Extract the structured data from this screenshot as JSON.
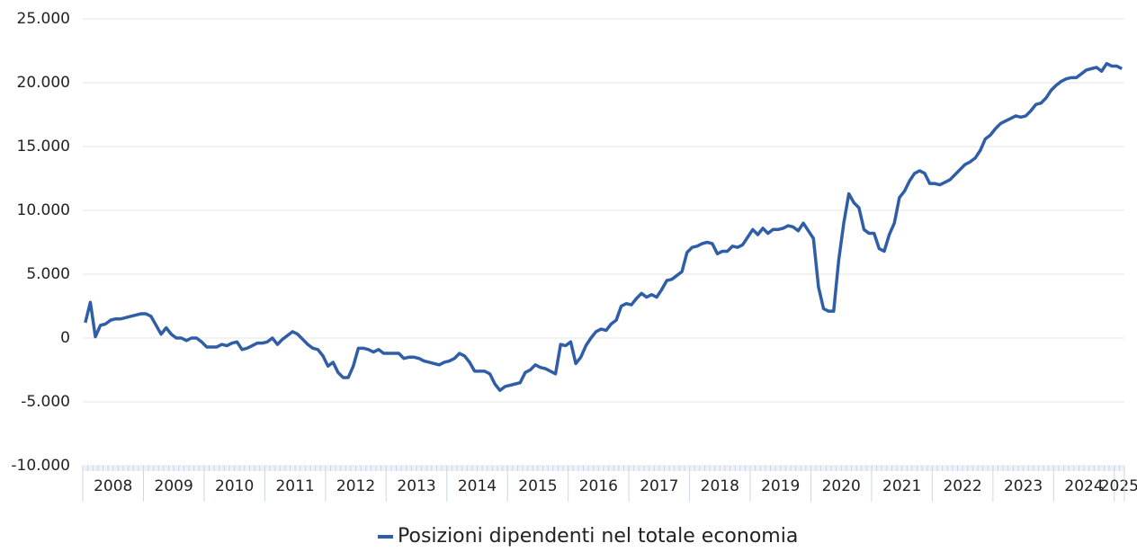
{
  "chart_data": {
    "type": "line",
    "categories": [
      "2008",
      null,
      null,
      null,
      null,
      null,
      null,
      null,
      null,
      null,
      null,
      null,
      "2009",
      null,
      null,
      null,
      null,
      null,
      null,
      null,
      null,
      null,
      null,
      null,
      "2010",
      null,
      null,
      null,
      null,
      null,
      null,
      null,
      null,
      null,
      null,
      null,
      "2011",
      null,
      null,
      null,
      null,
      null,
      null,
      null,
      null,
      null,
      null,
      null,
      "2012",
      null,
      null,
      null,
      null,
      null,
      null,
      null,
      null,
      null,
      null,
      null,
      "2013",
      null,
      null,
      null,
      null,
      null,
      null,
      null,
      null,
      null,
      null,
      null,
      "2014",
      null,
      null,
      null,
      null,
      null,
      null,
      null,
      null,
      null,
      null,
      null,
      "2015",
      null,
      null,
      null,
      null,
      null,
      null,
      null,
      null,
      null,
      null,
      null,
      "2016",
      null,
      null,
      null,
      null,
      null,
      null,
      null,
      null,
      null,
      null,
      null,
      "2017",
      null,
      null,
      null,
      null,
      null,
      null,
      null,
      null,
      null,
      null,
      null,
      "2018",
      null,
      null,
      null,
      null,
      null,
      null,
      null,
      null,
      null,
      null,
      null,
      "2019",
      null,
      null,
      null,
      null,
      null,
      null,
      null,
      null,
      null,
      null,
      null,
      "2020",
      null,
      null,
      null,
      null,
      null,
      null,
      null,
      null,
      null,
      null,
      null,
      "2021",
      null,
      null,
      null,
      null,
      null,
      null,
      null,
      null,
      null,
      null,
      null,
      "2022",
      null,
      null,
      null,
      null,
      null,
      null,
      null,
      null,
      null,
      null,
      null,
      "2023",
      null,
      null,
      null,
      null,
      null,
      null,
      null,
      null,
      null,
      null,
      null,
      "2024",
      null,
      null,
      null,
      null,
      null,
      null,
      null,
      null,
      null,
      null,
      null,
      "2025",
      null
    ],
    "series": [
      {
        "name": "Posizioni dipendenti nel totale economia",
        "color": "#2f5ea6",
        "values": [
          1200,
          2800,
          100,
          1000,
          1100,
          1400,
          1500,
          1500,
          1600,
          1700,
          1800,
          1900,
          1900,
          1700,
          1000,
          300,
          800,
          300,
          0,
          0,
          -200,
          0,
          0,
          -300,
          -700,
          -700,
          -700,
          -500,
          -600,
          -400,
          -300,
          -900,
          -800,
          -600,
          -400,
          -400,
          -300,
          0,
          -500,
          -100,
          200,
          500,
          300,
          -100,
          -500,
          -800,
          -900,
          -1400,
          -2200,
          -1900,
          -2700,
          -3100,
          -3100,
          -2200,
          -800,
          -800,
          -900,
          -1100,
          -900,
          -1200,
          -1200,
          -1200,
          -1200,
          -1600,
          -1500,
          -1500,
          -1600,
          -1800,
          -1900,
          -2000,
          -2100,
          -1900,
          -1800,
          -1600,
          -1200,
          -1400,
          -1900,
          -2600,
          -2600,
          -2600,
          -2800,
          -3600,
          -4100,
          -3800,
          -3700,
          -3600,
          -3500,
          -2700,
          -2500,
          -2100,
          -2300,
          -2400,
          -2600,
          -2800,
          -500,
          -600,
          -300,
          -2000,
          -1500,
          -600,
          0,
          500,
          700,
          600,
          1100,
          1400,
          2500,
          2700,
          2600,
          3100,
          3500,
          3200,
          3400,
          3200,
          3800,
          4500,
          4600,
          4900,
          5200,
          6700,
          7100,
          7200,
          7400,
          7500,
          7400,
          6600,
          6800,
          6800,
          7200,
          7100,
          7300,
          7900,
          8500,
          8100,
          8600,
          8200,
          8500,
          8500,
          8600,
          8800,
          8700,
          8400,
          9000,
          8400,
          7800,
          4000,
          2300,
          2100,
          2100,
          6100,
          9000,
          11300,
          10600,
          10200,
          8500,
          8200,
          8200,
          7000,
          6800,
          8100,
          9000,
          11000,
          11500,
          12300,
          12900,
          13100,
          12900,
          12100,
          12100,
          12000,
          12200,
          12400,
          12800,
          13200,
          13600,
          13800,
          14100,
          14700,
          15600,
          15900,
          16400,
          16800,
          17000,
          17200,
          17400,
          17300,
          17400,
          17800,
          18300,
          18400,
          18800,
          19400,
          19800,
          20100,
          20300,
          20400,
          20400,
          20700,
          21000,
          21100,
          21200,
          20900,
          21500,
          21300,
          21300,
          21100
        ]
      }
    ],
    "ylim": [
      -10000,
      25000
    ],
    "yticks": [
      {
        "value": -10000,
        "label": "-10.000"
      },
      {
        "value": -5000,
        "label": "-5.000"
      },
      0,
      {
        "value": 5000,
        "label": "5.000"
      },
      {
        "value": 10000,
        "label": "10.000"
      },
      {
        "value": 15000,
        "label": "15.000"
      },
      {
        "value": 20000,
        "label": "20.000"
      },
      {
        "value": 25000,
        "label": "25.000"
      }
    ],
    "grid": true
  }
}
